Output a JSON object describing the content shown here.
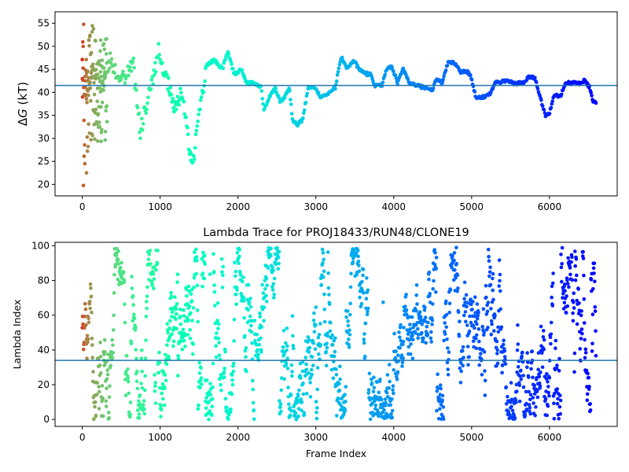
{
  "chart_data": [
    {
      "type": "scatter",
      "ylabel_prefix": "Δ",
      "ylabel_symbol": "G",
      "ylabel_suffix": " (kT)",
      "xlim": [
        -350,
        6870
      ],
      "ylim": [
        17.5,
        57.5
      ],
      "xticks": [
        0,
        1000,
        2000,
        3000,
        4000,
        5000,
        6000
      ],
      "yticks": [
        20,
        25,
        30,
        35,
        40,
        45,
        50,
        55
      ],
      "hline": 41.5,
      "colormap": "rainbow-reversed",
      "n_frames": 6600,
      "trace_anchors": [
        [
          0,
          42
        ],
        [
          60,
          40
        ],
        [
          120,
          44
        ],
        [
          200,
          45
        ],
        [
          280,
          43
        ],
        [
          360,
          47
        ],
        [
          450,
          44
        ],
        [
          550,
          43
        ],
        [
          650,
          47
        ],
        [
          700,
          38
        ],
        [
          750,
          31
        ],
        [
          800,
          36
        ],
        [
          900,
          42
        ],
        [
          980,
          49
        ],
        [
          1020,
          45
        ],
        [
          1100,
          42
        ],
        [
          1150,
          38
        ],
        [
          1200,
          36
        ],
        [
          1260,
          40
        ],
        [
          1300,
          38
        ],
        [
          1360,
          30
        ],
        [
          1400,
          25
        ],
        [
          1440,
          25.5
        ],
        [
          1480,
          34
        ],
        [
          1520,
          38
        ],
        [
          1560,
          42
        ],
        [
          1600,
          46
        ],
        [
          1700,
          47
        ],
        [
          1800,
          45
        ],
        [
          1870,
          49
        ],
        [
          1950,
          44
        ],
        [
          2050,
          45
        ],
        [
          2100,
          42
        ],
        [
          2200,
          42
        ],
        [
          2300,
          41
        ],
        [
          2330,
          36
        ],
        [
          2400,
          39
        ],
        [
          2480,
          41
        ],
        [
          2540,
          38
        ],
        [
          2600,
          39
        ],
        [
          2660,
          41
        ],
        [
          2700,
          34
        ],
        [
          2760,
          33
        ],
        [
          2830,
          34
        ],
        [
          2900,
          41
        ],
        [
          3000,
          41
        ],
        [
          3050,
          39
        ],
        [
          3150,
          39.5
        ],
        [
          3250,
          41
        ],
        [
          3300,
          46
        ],
        [
          3340,
          47.5
        ],
        [
          3400,
          45
        ],
        [
          3480,
          47
        ],
        [
          3560,
          45
        ],
        [
          3650,
          44
        ],
        [
          3700,
          44
        ],
        [
          3750,
          41.5
        ],
        [
          3850,
          41.5
        ],
        [
          3900,
          45
        ],
        [
          3980,
          45.5
        ],
        [
          4050,
          42
        ],
        [
          4120,
          45
        ],
        [
          4200,
          42
        ],
        [
          4300,
          41.5
        ],
        [
          4400,
          41
        ],
        [
          4500,
          40.5
        ],
        [
          4550,
          43
        ],
        [
          4620,
          42
        ],
        [
          4700,
          46.5
        ],
        [
          4780,
          46.5
        ],
        [
          4850,
          44.5
        ],
        [
          4950,
          44.5
        ],
        [
          5000,
          43
        ],
        [
          5050,
          39
        ],
        [
          5150,
          39
        ],
        [
          5250,
          40
        ],
        [
          5300,
          42
        ],
        [
          5450,
          42.5
        ],
        [
          5550,
          42
        ],
        [
          5650,
          42
        ],
        [
          5750,
          43.5
        ],
        [
          5820,
          43
        ],
        [
          5880,
          39
        ],
        [
          5950,
          35
        ],
        [
          6000,
          35.5
        ],
        [
          6050,
          39
        ],
        [
          6150,
          39.5
        ],
        [
          6200,
          42
        ],
        [
          6300,
          42
        ],
        [
          6400,
          42
        ],
        [
          6450,
          42.5
        ],
        [
          6520,
          41
        ],
        [
          6560,
          38
        ],
        [
          6600,
          37.5
        ]
      ],
      "early_scatter_ranges": [
        [
          0,
          18.5,
          56
        ],
        [
          90,
          23.5,
          57
        ],
        [
          180,
          29,
          52
        ]
      ]
    },
    {
      "type": "scatter",
      "title": "Lambda Trace for PROJ18433/RUN48/CLONE19",
      "xlabel": "Frame Index",
      "ylabel": "Lambda Index",
      "xlim": [
        -350,
        6870
      ],
      "ylim": [
        -4,
        102
      ],
      "xticks": [
        0,
        1000,
        2000,
        3000,
        4000,
        5000,
        6000
      ],
      "yticks": [
        0,
        20,
        40,
        60,
        80,
        100
      ],
      "hline": 34,
      "colormap": "rainbow-reversed",
      "n_frames": 6600,
      "value_min": 0,
      "value_max": 99
    }
  ]
}
